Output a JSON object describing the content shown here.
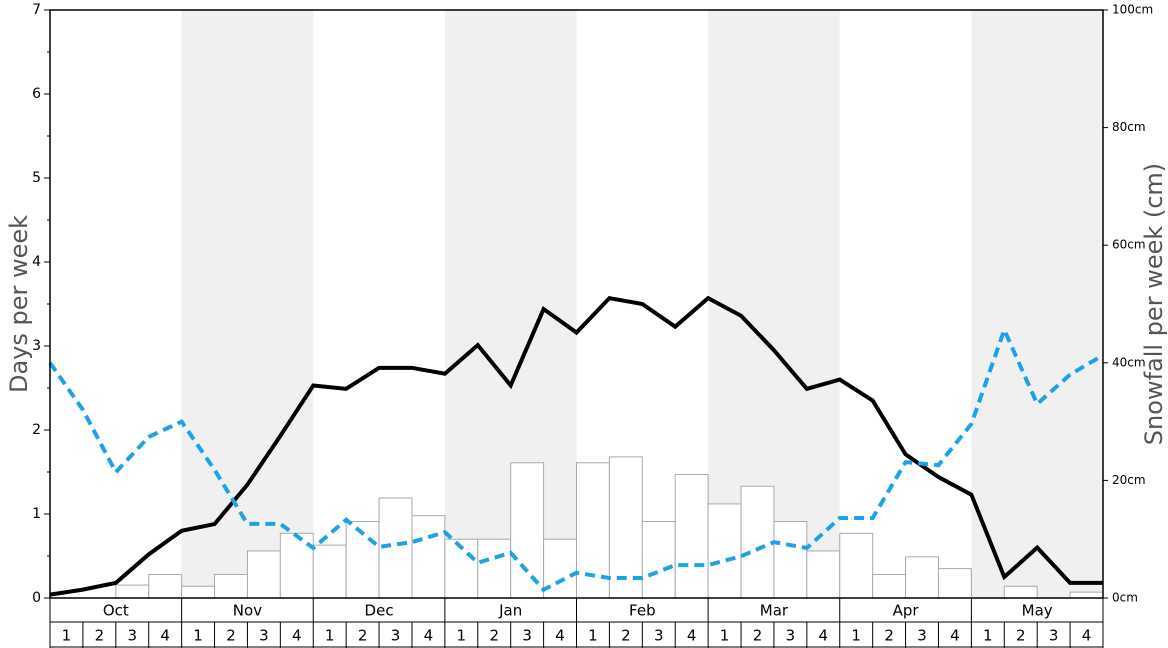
{
  "chart_data": {
    "type": "bar-line",
    "y_label": "Days per week",
    "y2_label": "Snowfall per week (cm)",
    "months": [
      "Oct",
      "Nov",
      "Dec",
      "Jan",
      "Feb",
      "Mar",
      "Apr",
      "May"
    ],
    "weeks": [
      1,
      2,
      3,
      4
    ],
    "ylim": [
      0,
      7
    ],
    "yticks": [
      0,
      1,
      2,
      3,
      4,
      5,
      6,
      7
    ],
    "y_minor_ticks": [
      0.5,
      1.5,
      2.5,
      3.5,
      4.5,
      5.5,
      6.5
    ],
    "y2lim": [
      0,
      100
    ],
    "y2ticks": [
      {
        "value": 0,
        "label": "0cm"
      },
      {
        "value": 20,
        "label": "20cm"
      },
      {
        "value": 40,
        "label": "40cm"
      },
      {
        "value": 60,
        "label": "60cm"
      },
      {
        "value": 80,
        "label": "80cm"
      },
      {
        "value": 100,
        "label": "100cm"
      }
    ],
    "bars": {
      "axis": "y2",
      "color": "#ffffff",
      "edge_color": "#aaaaaa",
      "values": [
        0,
        0,
        2.2,
        4,
        2,
        4,
        8,
        11,
        9,
        13,
        17,
        14,
        10,
        10,
        23,
        10,
        23,
        24,
        13,
        21,
        16,
        19,
        13,
        8,
        11,
        4,
        7,
        5,
        0,
        2,
        0,
        1
      ]
    },
    "lines": [
      {
        "axis": "y",
        "color": "#000000",
        "dashed": false,
        "values": [
          0.04,
          0.1,
          0.18,
          0.52,
          0.8,
          0.88,
          1.35,
          1.93,
          2.53,
          2.49,
          2.74,
          2.74,
          2.67,
          3.01,
          2.53,
          3.44,
          3.16,
          3.57,
          3.5,
          3.23,
          3.57,
          3.36,
          2.95,
          2.49,
          2.6,
          2.35,
          1.71,
          1.44,
          1.23,
          0.25,
          0.6,
          0.18,
          0.18
        ]
      },
      {
        "axis": "y2",
        "color": "#1ca3e6",
        "dashed": true,
        "values": [
          40,
          32,
          21.4,
          27.4,
          30,
          21.8,
          12.6,
          12.6,
          8.5,
          13.3,
          8.7,
          9.5,
          11.2,
          6,
          7.7,
          1.4,
          4.3,
          3.4,
          3.4,
          5.6,
          5.6,
          7.1,
          9.5,
          8.5,
          13.6,
          13.6,
          23.1,
          22.6,
          29.6,
          45.6,
          33,
          38,
          41.3
        ]
      }
    ]
  }
}
